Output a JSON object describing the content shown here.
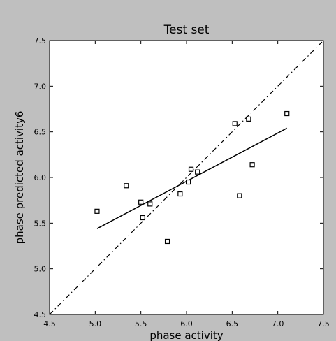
{
  "chart_data": {
    "type": "scatter",
    "title": "Test set",
    "xlabel": "phase activity",
    "ylabel": "phase predicted activity6",
    "xlim": [
      4.5,
      7.5
    ],
    "ylim": [
      4.5,
      7.5
    ],
    "xticks": [
      "4.5",
      "5.0",
      "5.5",
      "6.0",
      "6.5",
      "7.0",
      "7.5"
    ],
    "yticks": [
      "4.5",
      "5.0",
      "5.5",
      "6.0",
      "6.5",
      "7.0",
      "7.5"
    ],
    "grid": false,
    "points": [
      {
        "x": 5.02,
        "y": 5.63
      },
      {
        "x": 5.34,
        "y": 5.91
      },
      {
        "x": 5.5,
        "y": 5.73
      },
      {
        "x": 5.52,
        "y": 5.56
      },
      {
        "x": 5.6,
        "y": 5.71
      },
      {
        "x": 5.79,
        "y": 5.3
      },
      {
        "x": 5.93,
        "y": 5.82
      },
      {
        "x": 6.02,
        "y": 5.95
      },
      {
        "x": 6.05,
        "y": 6.09
      },
      {
        "x": 6.12,
        "y": 6.06
      },
      {
        "x": 6.53,
        "y": 6.59
      },
      {
        "x": 6.58,
        "y": 5.8
      },
      {
        "x": 6.68,
        "y": 6.64
      },
      {
        "x": 6.72,
        "y": 6.14
      },
      {
        "x": 7.1,
        "y": 6.7
      }
    ],
    "fit_line": {
      "x": [
        5.02,
        7.1
      ],
      "y": [
        5.44,
        6.54
      ]
    },
    "identity_line": {
      "x": [
        4.5,
        7.5
      ],
      "y": [
        4.5,
        7.5
      ]
    },
    "colors": {
      "figure_background": "#bfbfbf",
      "plot_background": "#ffffff",
      "marker_edge": "#000000",
      "fit_line": "#000000",
      "identity_line": "#000000"
    }
  }
}
